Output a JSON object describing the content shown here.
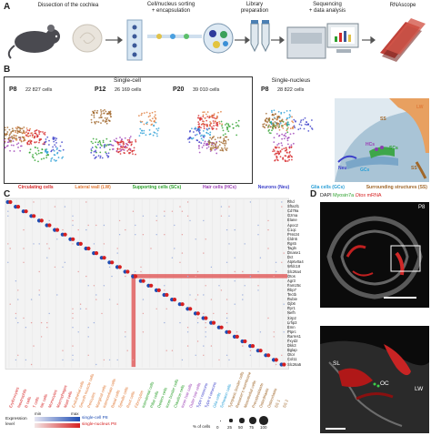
{
  "panels": {
    "a": "A",
    "b": "B",
    "c": "C",
    "d": "D"
  },
  "workflow": {
    "steps": [
      "Dissection of the cochlea",
      "Cell/nucleus sorting\n+ encapsulation",
      "Library\npreparation",
      "Sequencing\n+ data analysis",
      "RNAscope"
    ]
  },
  "single_cell": {
    "title": "Single-cell",
    "samples": [
      {
        "age": "P8",
        "count": "22 827 cells"
      },
      {
        "age": "P12",
        "count": "26 169 cells"
      },
      {
        "age": "P20",
        "count": "39 010 cells"
      }
    ]
  },
  "single_nucleus": {
    "title": "Single-nucleus",
    "sample": {
      "age": "P8",
      "count": "28 822 cells"
    }
  },
  "anatomy": {
    "ss1": "SS",
    "lw": "LW",
    "ss2": "SS",
    "scs": "SCs",
    "neu": "Neu",
    "gcs": "GCs",
    "hcs": "HCs"
  },
  "cell_legend": [
    {
      "label": "Circulating cells",
      "color": "#d62728"
    },
    {
      "label": "Lateral wall (LW)",
      "color": "#e07b39"
    },
    {
      "label": "Supporting cells (SCs)",
      "color": "#2ca02c"
    },
    {
      "label": "Hair cells (HCs)",
      "color": "#9b3fb5"
    },
    {
      "label": "Neurons (Neu)",
      "color": "#3b3fc9"
    },
    {
      "label": "Glia cells (GCs)",
      "color": "#2a9fd6"
    },
    {
      "label": "Surrounding structures (SS)",
      "color": "#a0672a"
    }
  ],
  "dotplot": {
    "genes": [
      "Rhd",
      "Sfta2l1",
      "Cd79a",
      "Gzma",
      "Elane",
      "Apoc2",
      "C1qc",
      "Prss34",
      "Cldn5",
      "Rgs5",
      "Tagln",
      "Dnase1",
      "Dct",
      "Atp6v0a4",
      "Wfdc18",
      "Slc26a4",
      "Otos",
      "Agr3",
      "Fam25c",
      "Rbp7",
      "Tectb",
      "Rubie",
      "Gjb6",
      "Ryr1",
      "Nefh",
      "Xirp2",
      "Lrfip3",
      "Emn",
      "Ptprc",
      "Rarres1",
      "Fxyd2",
      "Dkk3",
      "Bglap",
      "Otor",
      "Col11",
      "Slc26a5"
    ],
    "columns": [
      {
        "label": "Erythrocytes",
        "color": "#d62728"
      },
      {
        "label": "Neutrophils",
        "color": "#d62728"
      },
      {
        "label": "B cells",
        "color": "#d62728"
      },
      {
        "label": "T cells",
        "color": "#d62728"
      },
      {
        "label": "NK cells",
        "color": "#d62728"
      },
      {
        "label": "Monocytes",
        "color": "#d62728"
      },
      {
        "label": "Macrophages",
        "color": "#d62728"
      },
      {
        "label": "Mast cells",
        "color": "#d62728"
      },
      {
        "label": "Endothelial cells",
        "color": "#e07b39"
      },
      {
        "label": "Smooth muscle cells",
        "color": "#e07b39"
      },
      {
        "label": "Pericytes",
        "color": "#e07b39"
      },
      {
        "label": "Marginal cells",
        "color": "#e07b39"
      },
      {
        "label": "Intermediate cells",
        "color": "#e07b39"
      },
      {
        "label": "Basal cells",
        "color": "#e07b39"
      },
      {
        "label": "Spindle cells",
        "color": "#e07b39"
      },
      {
        "label": "Root cells",
        "color": "#e07b39"
      },
      {
        "label": "Fibrocytes",
        "color": "#e07b39"
      },
      {
        "label": "Interdental cells",
        "color": "#2ca02c"
      },
      {
        "label": "Pillar cells",
        "color": "#2ca02c"
      },
      {
        "label": "Deiters cells",
        "color": "#2ca02c"
      },
      {
        "label": "Inner border cells",
        "color": "#2ca02c"
      },
      {
        "label": "Claudius cells",
        "color": "#2ca02c"
      },
      {
        "label": "Inner hair cells",
        "color": "#9b3fb5"
      },
      {
        "label": "Outer hair cells",
        "color": "#9b3fb5"
      },
      {
        "label": "Type I neurons",
        "color": "#3b3fc9"
      },
      {
        "label": "Type II neurons",
        "color": "#3b3fc9"
      },
      {
        "label": "Glia cells",
        "color": "#2a9fd6"
      },
      {
        "label": "Schwann cells",
        "color": "#2a9fd6"
      },
      {
        "label": "Tympanic border cells",
        "color": "#a0672a"
      },
      {
        "label": "Reissner's membrane",
        "color": "#a0672a"
      },
      {
        "label": "Mesothelial cells",
        "color": "#a0672a"
      },
      {
        "label": "Preosteoblasts",
        "color": "#a0672a"
      },
      {
        "label": "Osteoblasts",
        "color": "#a0672a"
      },
      {
        "label": "Osteoclasts",
        "color": "#a0672a"
      },
      {
        "label": "SS 1",
        "color": "#a0672a"
      },
      {
        "label": "SS 2",
        "color": "#a0672a"
      }
    ],
    "expression_label": "Expression\nlevel",
    "min": "min",
    "max": "max",
    "sc_label": "single-cell P8",
    "sn_label": "single-nucleus P8",
    "size_legend": {
      "title": "% of cells",
      "ticks": [
        "0",
        "25",
        "50",
        "75",
        "100"
      ]
    }
  },
  "panel_d": {
    "title_dapi": "DAPI",
    "title_myo": "Myosin7a",
    "title_otos": "Otos",
    "title_mrna": "mRNA",
    "age": "P8",
    "sl": "SL",
    "oc": "OC",
    "lw": "LW"
  }
}
